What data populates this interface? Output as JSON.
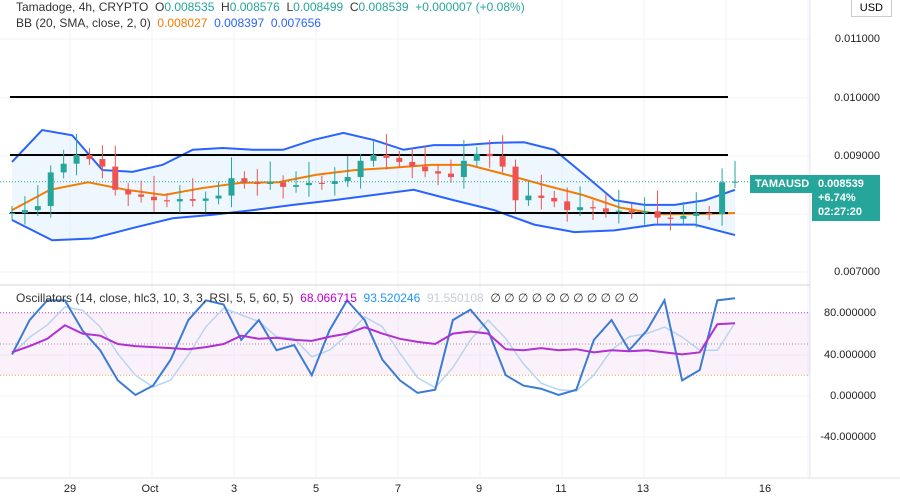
{
  "header": {
    "symbol": "Tamadoge, 4h, CRYPTO",
    "o_label": "O",
    "o": "0.008535",
    "h_label": "H",
    "h": "0.008576",
    "l_label": "L",
    "l": "0.008499",
    "c_label": "C",
    "c": "0.008539",
    "change": "+0.000007 (+0.08%)"
  },
  "bb": {
    "label": "BB (20, SMA, close, 2, 0)",
    "basis": "0.008027",
    "upper": "0.008397",
    "lower": "0.007656"
  },
  "osc": {
    "label": "Oscillators (14, close, hlc3, 10, 3, 3, RSI, 5, 5, 60, 5)",
    "v1": "68.066715",
    "v2": "93.520246",
    "v3": "91.550108",
    "zeros": "∅ ∅ ∅ ∅ ∅ ∅ ∅ ∅ ∅ ∅ ∅"
  },
  "currency": "USD",
  "price_axis": [
    "0.011000",
    "0.010000",
    "0.009000",
    "0.007000"
  ],
  "osc_axis": [
    "80.000000",
    "40.000000",
    "0.000000",
    "-40.000000"
  ],
  "time_axis": [
    "29",
    "Oct",
    "3",
    "5",
    "7",
    "9",
    "11",
    "13",
    "16"
  ],
  "price_tag": {
    "symbol": "TAMAUSD",
    "price": "0.008539",
    "change": "+6.74%",
    "countdown": "02:27:20"
  },
  "colors": {
    "up": "#26a69a",
    "down": "#ef5350",
    "bb_band": "#2962ff",
    "bb_basis": "#f57c00",
    "rsi": "#b030d0",
    "stoch": "#3a7bd5"
  },
  "chart_data": {
    "type": "candlestick",
    "closes": [
      0.008,
      0.00805,
      0.00812,
      0.0087,
      0.00885,
      0.009,
      0.00893,
      0.0088,
      0.0084,
      0.00832,
      0.00828,
      0.00822,
      0.0082,
      0.00824,
      0.00821,
      0.00825,
      0.0083,
      0.0086,
      0.00852,
      0.0085,
      0.00853,
      0.00845,
      0.00848,
      0.00852,
      0.0085,
      0.00855,
      0.00862,
      0.0089,
      0.009,
      0.00895,
      0.00888,
      0.0088,
      0.00872,
      0.00868,
      0.00862,
      0.0089,
      0.00902,
      0.00898,
      0.0088,
      0.00822,
      0.0083,
      0.00826,
      0.0082,
      0.00805,
      0.0081,
      0.00808,
      0.00802,
      0.00804,
      0.008,
      0.00803,
      0.00792,
      0.0079,
      0.00795,
      0.008,
      0.00798,
      0.00853,
      0.008539
    ],
    "levels": [
      0.01,
      0.009,
      0.008
    ],
    "bb_upper": [
      0.00888,
      0.00943,
      0.00934,
      0.00874,
      0.00871,
      0.00883,
      0.00909,
      0.00912,
      0.00909,
      0.00909,
      0.00926,
      0.00938,
      0.00926,
      0.00909,
      0.00917,
      0.00917,
      0.00921,
      0.00922,
      0.00909,
      0.00866,
      0.00822,
      0.00814,
      0.00814,
      0.00822,
      0.0084
    ],
    "bb_basis": [
      0.00805,
      0.0084,
      0.00853,
      0.0084,
      0.00831,
      0.00843,
      0.00852,
      0.00853,
      0.00866,
      0.00874,
      0.00878,
      0.00883,
      0.00883,
      0.00866,
      0.00848,
      0.00831,
      0.00809,
      0.00798,
      0.00798,
      0.008
    ],
    "bb_lower": [
      0.00788,
      0.00753,
      0.00756,
      0.00774,
      0.00791,
      0.00797,
      0.00805,
      0.00814,
      0.00822,
      0.00831,
      0.0084,
      0.00822,
      0.00805,
      0.0078,
      0.00767,
      0.0077,
      0.0078,
      0.0078,
      0.00762
    ],
    "stoch": [
      40,
      73,
      92,
      92,
      63,
      44,
      15,
      1,
      10,
      35,
      73,
      92,
      88,
      54,
      73,
      44,
      49,
      20,
      63,
      92,
      73,
      35,
      15,
      3,
      6,
      73,
      83,
      63,
      20,
      10,
      7,
      1,
      6,
      54,
      73,
      44,
      63,
      92,
      15,
      25,
      92,
      94
    ],
    "rsi": [
      42,
      48,
      55,
      68,
      60,
      58,
      50,
      48,
      47,
      46,
      45,
      47,
      50,
      58,
      55,
      56,
      54,
      53,
      57,
      60,
      66,
      60,
      55,
      52,
      50,
      60,
      62,
      60,
      45,
      44,
      46,
      44,
      45,
      42,
      44,
      43,
      44,
      42,
      40,
      42,
      69,
      70
    ],
    "price_range": [
      0.0068,
      0.0112
    ],
    "osc_range": [
      -50,
      100
    ]
  }
}
